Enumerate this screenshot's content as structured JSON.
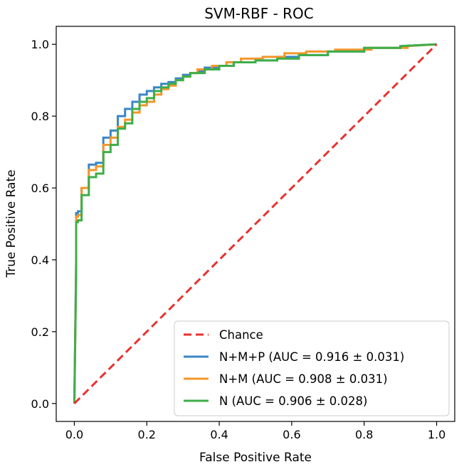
{
  "chart_data": {
    "type": "line",
    "title": "SVM-RBF - ROC",
    "xlabel": "False Positive Rate",
    "ylabel": "True Positive Rate",
    "xlim": [
      -0.05,
      1.05
    ],
    "ylim": [
      -0.05,
      1.05
    ],
    "xticks": [
      "0.0",
      "0.2",
      "0.4",
      "0.6",
      "0.8",
      "1.0"
    ],
    "yticks": [
      "0.0",
      "0.2",
      "0.4",
      "0.6",
      "0.8",
      "1.0"
    ],
    "legend_position": "lower-right",
    "series": [
      {
        "name": "Chance",
        "color": "#e8322f",
        "dashed": true,
        "x": [
          0,
          1
        ],
        "y": [
          0,
          1
        ]
      },
      {
        "name": "N+M+P (AUC = 0.916 ± 0.031)",
        "color": "#3a86c8",
        "dashed": false,
        "x": [
          0,
          0.005,
          0.005,
          0.01,
          0.01,
          0.02,
          0.02,
          0.04,
          0.04,
          0.06,
          0.06,
          0.08,
          0.08,
          0.1,
          0.1,
          0.12,
          0.12,
          0.14,
          0.14,
          0.16,
          0.16,
          0.18,
          0.18,
          0.2,
          0.2,
          0.22,
          0.22,
          0.24,
          0.24,
          0.26,
          0.26,
          0.28,
          0.28,
          0.3,
          0.3,
          0.32,
          0.32,
          0.34,
          0.34,
          0.36,
          0.36,
          0.4,
          0.4,
          0.44,
          0.44,
          0.5,
          0.5,
          0.56,
          0.56,
          0.62,
          0.62,
          0.7,
          0.7,
          0.8,
          0.8,
          0.9,
          0.9,
          1.0
        ],
        "y": [
          0,
          0.4,
          0.53,
          0.53,
          0.535,
          0.535,
          0.6,
          0.6,
          0.665,
          0.665,
          0.67,
          0.67,
          0.74,
          0.74,
          0.76,
          0.76,
          0.8,
          0.8,
          0.82,
          0.82,
          0.84,
          0.84,
          0.86,
          0.86,
          0.87,
          0.87,
          0.88,
          0.88,
          0.89,
          0.89,
          0.895,
          0.895,
          0.905,
          0.905,
          0.915,
          0.915,
          0.92,
          0.92,
          0.925,
          0.925,
          0.935,
          0.935,
          0.94,
          0.94,
          0.95,
          0.95,
          0.955,
          0.955,
          0.965,
          0.965,
          0.97,
          0.97,
          0.98,
          0.98,
          0.99,
          0.99,
          0.995,
          1.0
        ]
      },
      {
        "name": "N+M (AUC = 0.908 ± 0.031)",
        "color": "#f5962a",
        "dashed": false,
        "x": [
          0,
          0.005,
          0.005,
          0.01,
          0.01,
          0.02,
          0.02,
          0.04,
          0.04,
          0.06,
          0.06,
          0.08,
          0.08,
          0.1,
          0.1,
          0.12,
          0.12,
          0.14,
          0.14,
          0.16,
          0.16,
          0.18,
          0.18,
          0.2,
          0.2,
          0.22,
          0.22,
          0.24,
          0.24,
          0.26,
          0.26,
          0.28,
          0.28,
          0.3,
          0.3,
          0.32,
          0.32,
          0.34,
          0.34,
          0.38,
          0.38,
          0.42,
          0.42,
          0.46,
          0.46,
          0.52,
          0.52,
          0.58,
          0.58,
          0.64,
          0.64,
          0.72,
          0.72,
          0.82,
          0.82,
          0.92,
          0.92,
          1.0
        ],
        "y": [
          0,
          0.38,
          0.52,
          0.52,
          0.525,
          0.525,
          0.6,
          0.6,
          0.65,
          0.65,
          0.66,
          0.66,
          0.72,
          0.72,
          0.74,
          0.74,
          0.77,
          0.77,
          0.79,
          0.79,
          0.81,
          0.81,
          0.83,
          0.83,
          0.84,
          0.84,
          0.86,
          0.86,
          0.875,
          0.875,
          0.885,
          0.885,
          0.9,
          0.9,
          0.91,
          0.91,
          0.92,
          0.92,
          0.93,
          0.93,
          0.94,
          0.94,
          0.95,
          0.95,
          0.96,
          0.96,
          0.965,
          0.965,
          0.975,
          0.975,
          0.98,
          0.98,
          0.985,
          0.985,
          0.99,
          0.99,
          0.995,
          1.0
        ]
      },
      {
        "name": "N (AUC = 0.906 ± 0.028)",
        "color": "#3fae49",
        "dashed": false,
        "x": [
          0,
          0.005,
          0.005,
          0.01,
          0.01,
          0.02,
          0.02,
          0.04,
          0.04,
          0.06,
          0.06,
          0.08,
          0.08,
          0.1,
          0.1,
          0.12,
          0.12,
          0.14,
          0.14,
          0.16,
          0.16,
          0.18,
          0.18,
          0.2,
          0.2,
          0.22,
          0.22,
          0.24,
          0.24,
          0.26,
          0.26,
          0.28,
          0.28,
          0.3,
          0.3,
          0.32,
          0.32,
          0.36,
          0.36,
          0.4,
          0.4,
          0.44,
          0.44,
          0.5,
          0.5,
          0.56,
          0.56,
          0.62,
          0.62,
          0.7,
          0.7,
          0.8,
          0.8,
          0.9,
          0.9,
          1.0
        ],
        "y": [
          0,
          0.36,
          0.505,
          0.505,
          0.51,
          0.51,
          0.58,
          0.58,
          0.63,
          0.63,
          0.64,
          0.64,
          0.7,
          0.7,
          0.72,
          0.72,
          0.765,
          0.765,
          0.78,
          0.78,
          0.82,
          0.82,
          0.84,
          0.84,
          0.85,
          0.85,
          0.87,
          0.87,
          0.88,
          0.88,
          0.89,
          0.89,
          0.9,
          0.9,
          0.91,
          0.91,
          0.92,
          0.92,
          0.93,
          0.93,
          0.94,
          0.94,
          0.95,
          0.95,
          0.955,
          0.955,
          0.96,
          0.96,
          0.97,
          0.97,
          0.98,
          0.98,
          0.99,
          0.99,
          0.995,
          1.0
        ]
      }
    ]
  }
}
